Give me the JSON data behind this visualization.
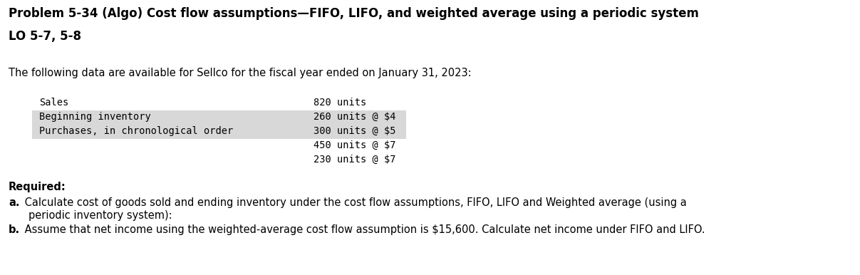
{
  "title_line1": "Problem 5-34 (Algo) Cost flow assumptions—FIFO, LIFO, and weighted average using a periodic system",
  "title_line2": "LO 5-7, 5-8",
  "intro_text": "The following data are available for Sellco for the fiscal year ended on January 31, 2023:",
  "table_rows": [
    {
      "label": "Sales",
      "value": "820 units",
      "shaded": false
    },
    {
      "label": "Beginning inventory",
      "value": "260 units @ $4",
      "shaded": true
    },
    {
      "label": "Purchases, in chronological order",
      "value": "300 units @ $5",
      "shaded": true
    },
    {
      "label": "",
      "value": "450 units @ $7",
      "shaded": false
    },
    {
      "label": "",
      "value": "230 units @ $7",
      "shaded": false
    }
  ],
  "required_label": "Required:",
  "req_a_bold": "a.",
  "req_a_text": " Calculate cost of goods sold and ending inventory under the cost flow assumptions, FIFO, LIFO and Weighted average (using a",
  "req_a_text2": "   periodic inventory system):",
  "req_b_bold": "b.",
  "req_b_text": " Assume that net income using the weighted-average cost flow assumption is $15,600. Calculate net income under FIFO and LIFO.",
  "bg_color": "#ffffff",
  "text_color": "#000000",
  "shade_color": "#d8d8d8",
  "title_fontsize": 12.0,
  "body_fontsize": 10.5,
  "mono_fontsize": 9.8
}
